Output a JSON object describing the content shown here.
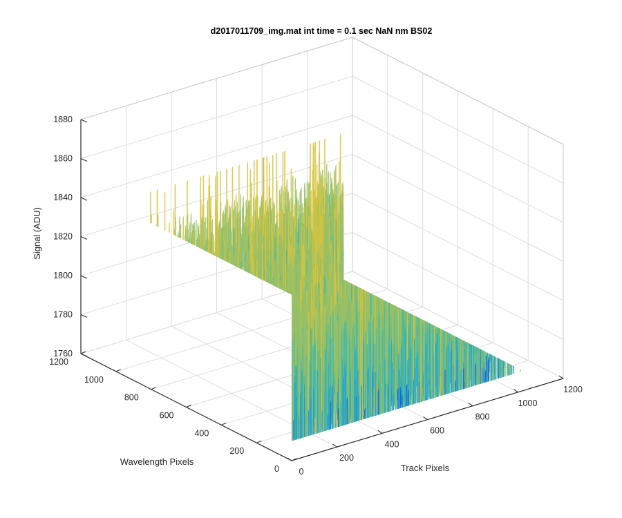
{
  "chart_data": {
    "type": "surface3d",
    "title": "d2017011709_img.mat int time = 0.1 sec  NaN nm BS02",
    "xlabel": "Track Pixels",
    "ylabel": "Wavelength Pixels",
    "zlabel": "Signal (ADU)",
    "xlim": [
      0,
      1200
    ],
    "ylim": [
      0,
      1200
    ],
    "zlim": [
      1760,
      1880
    ],
    "x_ticks": [
      0,
      200,
      400,
      600,
      800,
      1000,
      1200
    ],
    "y_ticks": [
      0,
      200,
      400,
      600,
      800,
      1000,
      1200
    ],
    "z_ticks": [
      1760,
      1780,
      1800,
      1820,
      1840,
      1860,
      1880
    ],
    "x_tick_labels": [
      "0",
      "200",
      "400",
      "600",
      "800",
      "1000",
      "1200"
    ],
    "y_tick_labels": [
      "0",
      "200",
      "400",
      "600",
      "800",
      "1000",
      "1200"
    ],
    "z_tick_labels": [
      "1760",
      "1780",
      "1800",
      "1820",
      "1840",
      "1860",
      "1880"
    ],
    "data_extent": {
      "x": [
        1,
        1024
      ],
      "y": [
        1,
        1024
      ]
    },
    "signal_stats": {
      "mean": 1800,
      "typical_min": 1770,
      "typical_max": 1845,
      "peak_max": 1865
    },
    "colormap": "parula",
    "colormap_stops": [
      "#0f62d6",
      "#1f9bd8",
      "#2bb0c2",
      "#4cbba0",
      "#9ac066",
      "#d6c43d"
    ],
    "grid": true,
    "box": "three back planes"
  }
}
